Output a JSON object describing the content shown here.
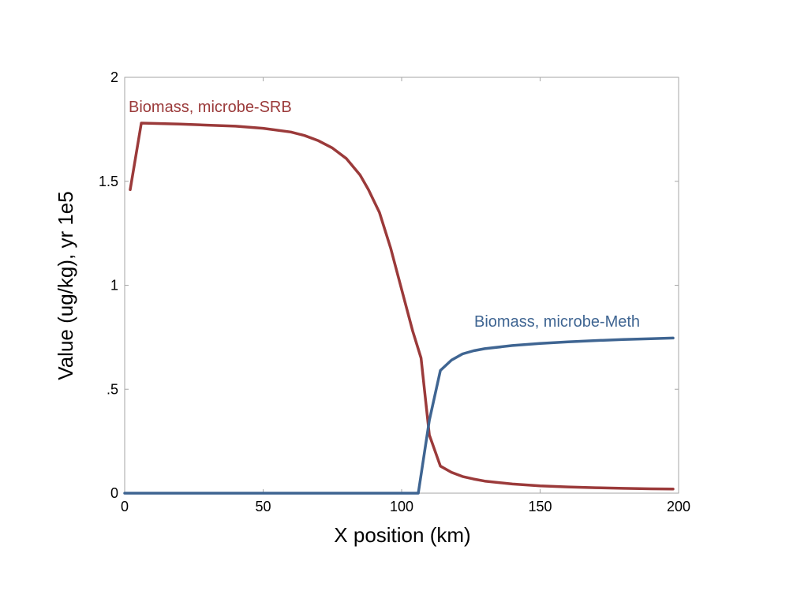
{
  "chart_data": {
    "type": "line",
    "title": "",
    "xlabel": "X position (km)",
    "ylabel": "Value (ug/kg), yr 1e5",
    "xlim": [
      0,
      200
    ],
    "ylim": [
      0,
      2
    ],
    "x_ticks": [
      0,
      50,
      100,
      150,
      200
    ],
    "x_tick_labels": [
      "0",
      "50",
      "100",
      "150",
      "200"
    ],
    "y_ticks": [
      0,
      0.5,
      1,
      1.5,
      2
    ],
    "y_tick_labels": [
      "0",
      ".5",
      "1",
      "1.5",
      "2"
    ],
    "grid": false,
    "legend": "inline labels",
    "series": [
      {
        "name": "Biomass, microbe-SRB",
        "color": "#9b3a3a",
        "x": [
          2,
          6,
          20,
          30,
          40,
          50,
          60,
          65,
          70,
          75,
          80,
          85,
          88,
          92,
          96,
          100,
          104,
          107,
          110,
          114,
          118,
          122,
          126,
          130,
          140,
          150,
          160,
          170,
          180,
          190,
          198
        ],
        "y": [
          1.46,
          1.78,
          1.775,
          1.77,
          1.765,
          1.755,
          1.737,
          1.72,
          1.695,
          1.66,
          1.61,
          1.53,
          1.46,
          1.35,
          1.18,
          0.98,
          0.78,
          0.65,
          0.28,
          0.13,
          0.1,
          0.08,
          0.068,
          0.058,
          0.044,
          0.035,
          0.03,
          0.026,
          0.023,
          0.021,
          0.02
        ]
      },
      {
        "name": "Biomass, microbe-Meth",
        "color": "#3f6592",
        "x": [
          0,
          50,
          100,
          106,
          110,
          114,
          118,
          122,
          126,
          130,
          140,
          150,
          160,
          170,
          180,
          190,
          198
        ],
        "y": [
          0,
          0,
          0,
          0,
          0.35,
          0.59,
          0.64,
          0.67,
          0.685,
          0.695,
          0.71,
          0.72,
          0.728,
          0.734,
          0.739,
          0.743,
          0.746
        ]
      }
    ],
    "annotations": [
      {
        "text": "Biomass, microbe-SRB",
        "series": 0
      },
      {
        "text": "Biomass, microbe-Meth",
        "series": 1
      }
    ]
  }
}
